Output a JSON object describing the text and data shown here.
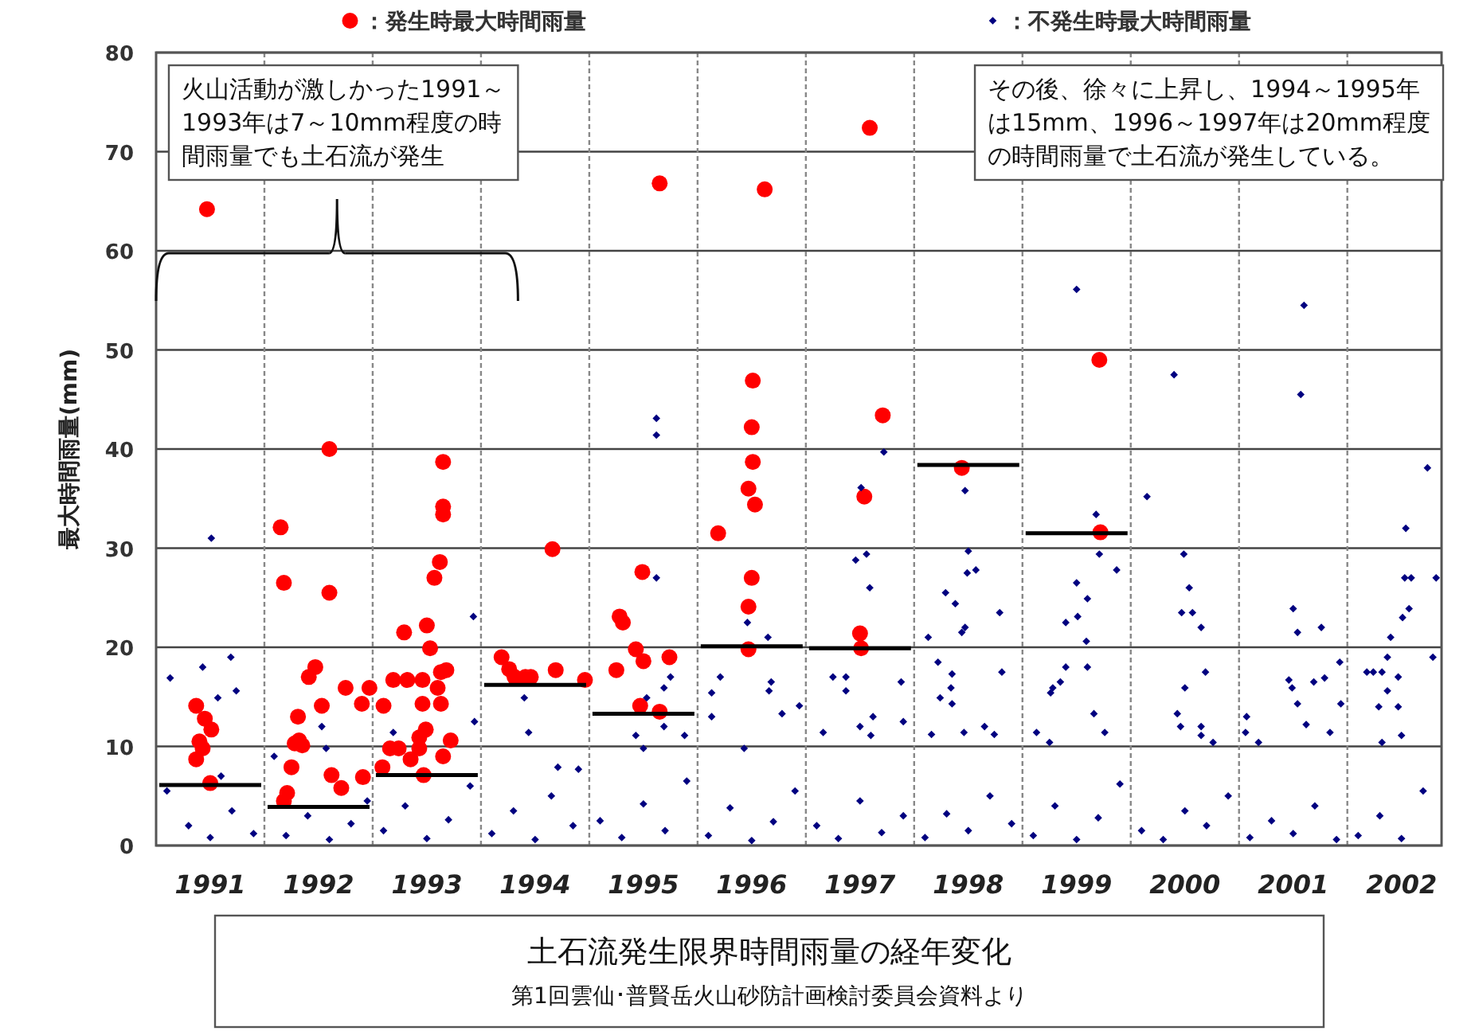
{
  "chart_data": {
    "type": "scatter",
    "title": "土石流発生限界時間雨量の経年変化",
    "subtitle": "第1回雲仙･普賢岳火山砂防計画検討委員会資料より",
    "ylabel": "最大時間雨量(mm)",
    "annotations": [
      "火山活動が激しかった1991～1993年は7～10mm程度の時間雨量でも土石流が発生",
      "その後、徐々に上昇し、1994～1995年は15mm、1996～1997年は20mm程度の時間雨量で土石流が発生している。"
    ],
    "xlim": [
      1990.5,
      2002.37
    ],
    "xticks": [
      1991,
      1992,
      1993,
      1994,
      1995,
      1996,
      1997,
      1998,
      1999,
      2000,
      2001,
      2002
    ],
    "ylim": [
      0,
      80
    ],
    "yticks": [
      0,
      10,
      20,
      30,
      40,
      50,
      60,
      70,
      80
    ],
    "grid": "y",
    "legend": "top",
    "ref_lines": [
      {
        "axis": "x",
        "value": 1991.5,
        "color": "#888888",
        "line_style": "dashed"
      },
      {
        "axis": "x",
        "value": 1992.5,
        "color": "#888888",
        "line_style": "dashed"
      },
      {
        "axis": "x",
        "value": 1993.5,
        "color": "#888888",
        "line_style": "dashed"
      },
      {
        "axis": "x",
        "value": 1994.5,
        "color": "#888888",
        "line_style": "dashed"
      },
      {
        "axis": "x",
        "value": 1995.5,
        "color": "#888888",
        "line_style": "dashed"
      },
      {
        "axis": "x",
        "value": 1996.5,
        "color": "#888888",
        "line_style": "dashed"
      },
      {
        "axis": "x",
        "value": 1997.5,
        "color": "#888888",
        "line_style": "dashed"
      },
      {
        "axis": "x",
        "value": 1998.5,
        "color": "#888888",
        "line_style": "dashed"
      },
      {
        "axis": "x",
        "value": 1999.5,
        "color": "#888888",
        "line_style": "dashed"
      },
      {
        "axis": "x",
        "value": 2000.5,
        "color": "#888888",
        "line_style": "dashed"
      },
      {
        "axis": "x",
        "value": 2001.5,
        "color": "#888888",
        "line_style": "dashed"
      }
    ],
    "series": [
      {
        "name": "：発生時最大時間雨量",
        "color": "#ff0000",
        "marker": "circle",
        "x": [
          1990.97,
          1990.87,
          1991.01,
          1990.93,
          1990.87,
          1991.0,
          1990.95,
          1990.9,
          1991.65,
          1991.68,
          1992.1,
          1992.1,
          1991.97,
          1991.91,
          1992.03,
          1991.81,
          1991.82,
          1991.78,
          1991.85,
          1991.75,
          1991.71,
          1991.68,
          1992.12,
          1992.21,
          1992.25,
          1992.4,
          1992.41,
          1992.47,
          1993.15,
          1993.15,
          1993.15,
          1993.12,
          1993.07,
          1992.79,
          1993.0,
          1993.03,
          1992.69,
          1992.82,
          1992.96,
          1993.13,
          1993.18,
          1993.1,
          1992.6,
          1992.96,
          1993.13,
          1992.99,
          1992.93,
          1992.66,
          1992.74,
          1992.93,
          1992.85,
          1993.15,
          1993.22,
          1992.59,
          1992.97,
          1994.16,
          1993.69,
          1993.76,
          1993.81,
          1993.91,
          1993.96,
          1994.19,
          1994.46,
          1995.15,
          1994.99,
          1994.78,
          1994.81,
          1994.93,
          1995.0,
          1994.75,
          1995.24,
          1994.97,
          1995.15,
          1996.12,
          1996.01,
          1996.0,
          1996.01,
          1995.97,
          1996.03,
          1995.69,
          1996.0,
          1995.97,
          1995.97,
          1997.09,
          1997.21,
          1997.04,
          1997.0,
          1997.01,
          1997.94,
          1999.21,
          1999.22
        ],
        "values": [
          64.2,
          14.1,
          11.7,
          9.8,
          8.7,
          6.3,
          12.8,
          10.5,
          32.1,
          26.5,
          40.0,
          25.5,
          18.0,
          17.0,
          14.1,
          13.0,
          10.6,
          10.3,
          10.1,
          7.9,
          5.3,
          4.5,
          7.1,
          5.8,
          15.9,
          14.3,
          6.9,
          15.9,
          38.7,
          34.2,
          33.4,
          28.6,
          27.0,
          21.5,
          22.2,
          19.9,
          16.7,
          16.7,
          16.7,
          17.5,
          17.7,
          15.9,
          14.1,
          14.3,
          14.3,
          11.7,
          10.9,
          9.8,
          9.8,
          9.8,
          8.7,
          9.0,
          10.6,
          7.9,
          7.1,
          29.9,
          19.0,
          17.8,
          17.0,
          17.0,
          17.0,
          17.7,
          16.7,
          66.8,
          27.6,
          23.1,
          22.5,
          19.8,
          18.6,
          17.7,
          19.0,
          14.1,
          13.5,
          66.2,
          46.9,
          42.2,
          38.7,
          36.0,
          34.4,
          31.5,
          27.0,
          24.1,
          19.8,
          72.4,
          43.4,
          35.2,
          21.4,
          19.9,
          38.1,
          49.0,
          31.6
        ]
      },
      {
        "name": "：不発生時最大時間雨量",
        "color": "#000080",
        "marker": "diamond",
        "x": [
          1991.01,
          1991.19,
          1990.63,
          1990.93,
          1991.24,
          1991.07,
          1990.6,
          1990.8,
          1991.0,
          1991.2,
          1991.4,
          1991.1,
          1991.59,
          1992.03,
          1992.07,
          1991.7,
          1991.9,
          1992.1,
          1992.3,
          1992.45,
          1993.43,
          1993.44,
          1992.69,
          1992.6,
          1992.8,
          1993.0,
          1993.2,
          1993.4,
          1993.9,
          1993.94,
          1994.4,
          1994.21,
          1993.6,
          1993.8,
          1994.0,
          1994.15,
          1994.35,
          1995.12,
          1995.12,
          1995.12,
          1995.25,
          1995.19,
          1995.03,
          1995.19,
          1995.38,
          1994.93,
          1995.0,
          1994.6,
          1994.8,
          1995.0,
          1995.2,
          1995.4,
          1995.96,
          1996.15,
          1995.71,
          1995.63,
          1995.63,
          1996.18,
          1996.16,
          1996.28,
          1996.44,
          1995.93,
          1995.6,
          1995.8,
          1996.0,
          1996.2,
          1996.4,
          1997.22,
          1997.01,
          1997.06,
          1996.96,
          1997.09,
          1996.75,
          1996.87,
          1996.87,
          1997.38,
          1997.12,
          1997.0,
          1997.4,
          1996.66,
          1997.1,
          1996.6,
          1996.8,
          1997.0,
          1997.2,
          1997.4,
          1997.97,
          1998.0,
          1997.99,
          1998.07,
          1997.79,
          1997.88,
          1998.29,
          1997.97,
          1997.94,
          1997.63,
          1997.72,
          1998.31,
          1997.85,
          1997.84,
          1997.74,
          1997.85,
          1998.15,
          1998.24,
          1997.66,
          1997.96,
          1997.6,
          1997.8,
          1998.0,
          1998.2,
          1998.4,
          1999.0,
          1999.18,
          1999.37,
          1999.0,
          1999.1,
          1999.01,
          1998.9,
          1999.09,
          1999.1,
          1998.9,
          1998.85,
          1998.78,
          1998.76,
          1999.16,
          1999.26,
          1998.63,
          1998.75,
          1999.21,
          1998.6,
          1998.8,
          1999.0,
          1999.2,
          1999.4,
          1999.9,
          1999.65,
          1999.99,
          2000.04,
          1999.97,
          2000.07,
          2000.15,
          2000.19,
          2000.0,
          1999.93,
          1999.96,
          2000.15,
          2000.15,
          2000.26,
          1999.6,
          1999.8,
          2000.0,
          2000.2,
          2000.4,
          2001.1,
          2001.07,
          2001.0,
          2001.04,
          2001.26,
          2001.43,
          2000.96,
          2000.99,
          2001.19,
          2001.29,
          2001.04,
          2001.44,
          2001.12,
          2001.34,
          2000.57,
          2000.56,
          2000.68,
          2000.6,
          2000.8,
          2001.0,
          2001.2,
          2001.4,
          2002.24,
          2002.04,
          2002.03,
          2002.09,
          2002.32,
          2002.07,
          2002.01,
          2001.9,
          2001.87,
          2002.29,
          2001.68,
          2001.74,
          2001.82,
          2001.97,
          2001.87,
          2001.79,
          2001.97,
          2001.82,
          2002.0,
          2001.6,
          2001.8,
          2002.0,
          2002.2
        ],
        "values": [
          31.0,
          19.0,
          16.9,
          18.0,
          15.6,
          14.9,
          5.5,
          2.0,
          0.8,
          3.5,
          1.2,
          7.0,
          9.0,
          12.0,
          9.8,
          1.0,
          3.0,
          0.6,
          2.2,
          4.5,
          23.1,
          12.5,
          11.4,
          1.5,
          4.0,
          0.7,
          2.6,
          6.0,
          14.9,
          11.4,
          7.7,
          7.9,
          1.2,
          3.5,
          0.6,
          5.0,
          2.0,
          43.1,
          41.4,
          27.0,
          17.0,
          15.9,
          14.9,
          12.0,
          11.1,
          11.1,
          9.8,
          2.5,
          0.8,
          4.2,
          1.5,
          6.5,
          22.5,
          21.0,
          17.0,
          15.4,
          13.0,
          16.5,
          15.6,
          13.3,
          14.1,
          9.8,
          1.0,
          3.8,
          0.5,
          2.4,
          5.5,
          39.7,
          36.1,
          29.4,
          28.8,
          26.0,
          17.0,
          17.0,
          15.6,
          16.5,
          13.0,
          12.0,
          12.5,
          11.4,
          11.1,
          2.0,
          0.7,
          4.5,
          1.3,
          3.0,
          35.8,
          29.7,
          27.5,
          27.8,
          25.5,
          24.4,
          23.5,
          22.0,
          21.5,
          21.0,
          18.5,
          17.5,
          17.3,
          15.9,
          14.9,
          14.3,
          12.0,
          11.2,
          11.2,
          11.4,
          0.8,
          3.2,
          1.5,
          5.0,
          2.2,
          56.1,
          33.4,
          27.8,
          26.5,
          24.9,
          23.1,
          22.5,
          20.6,
          18.0,
          18.0,
          16.5,
          15.9,
          15.4,
          13.3,
          11.4,
          11.4,
          10.4,
          29.4,
          1.0,
          4.0,
          0.6,
          2.8,
          6.2,
          47.5,
          35.2,
          29.4,
          26.0,
          23.5,
          23.5,
          22.0,
          17.5,
          15.9,
          13.3,
          12.0,
          12.0,
          11.1,
          10.4,
          1.5,
          0.6,
          3.5,
          2.0,
          5.0,
          54.5,
          45.5,
          23.9,
          21.5,
          22.0,
          18.5,
          16.7,
          15.9,
          16.5,
          16.9,
          14.3,
          14.3,
          12.2,
          11.4,
          13.0,
          11.4,
          10.4,
          0.8,
          2.5,
          1.2,
          4.0,
          0.6,
          38.1,
          32.0,
          27.0,
          27.0,
          27.0,
          23.9,
          23.0,
          21.0,
          19.0,
          19.0,
          17.5,
          17.5,
          17.5,
          17.0,
          15.6,
          14.0,
          14.0,
          10.4,
          11.1,
          1.0,
          3.0,
          0.7,
          5.5
        ]
      },
      {
        "type": "line",
        "color": "#000000",
        "x": [
          1990.5,
          1991.5
        ],
        "values": [
          6.1,
          6.1
        ]
      },
      {
        "type": "line",
        "color": "#000000",
        "x": [
          1991.5,
          1992.5
        ],
        "values": [
          3.9,
          3.9
        ]
      },
      {
        "type": "line",
        "color": "#000000",
        "x": [
          1992.5,
          1993.5
        ],
        "values": [
          7.1,
          7.1
        ]
      },
      {
        "type": "line",
        "color": "#000000",
        "x": [
          1993.5,
          1994.5
        ],
        "values": [
          16.2,
          16.2
        ]
      },
      {
        "type": "line",
        "color": "#000000",
        "x": [
          1994.5,
          1995.5
        ],
        "values": [
          13.3,
          13.3
        ]
      },
      {
        "type": "line",
        "color": "#000000",
        "x": [
          1995.5,
          1996.5
        ],
        "values": [
          20.1,
          20.1
        ]
      },
      {
        "type": "line",
        "color": "#000000",
        "x": [
          1996.5,
          1997.5
        ],
        "values": [
          19.9,
          19.9
        ]
      },
      {
        "type": "line",
        "color": "#000000",
        "x": [
          1997.5,
          1998.5
        ],
        "values": [
          38.4,
          38.4
        ]
      },
      {
        "type": "line",
        "color": "#000000",
        "x": [
          1998.5,
          1999.5
        ],
        "values": [
          31.5,
          31.5
        ]
      }
    ]
  }
}
